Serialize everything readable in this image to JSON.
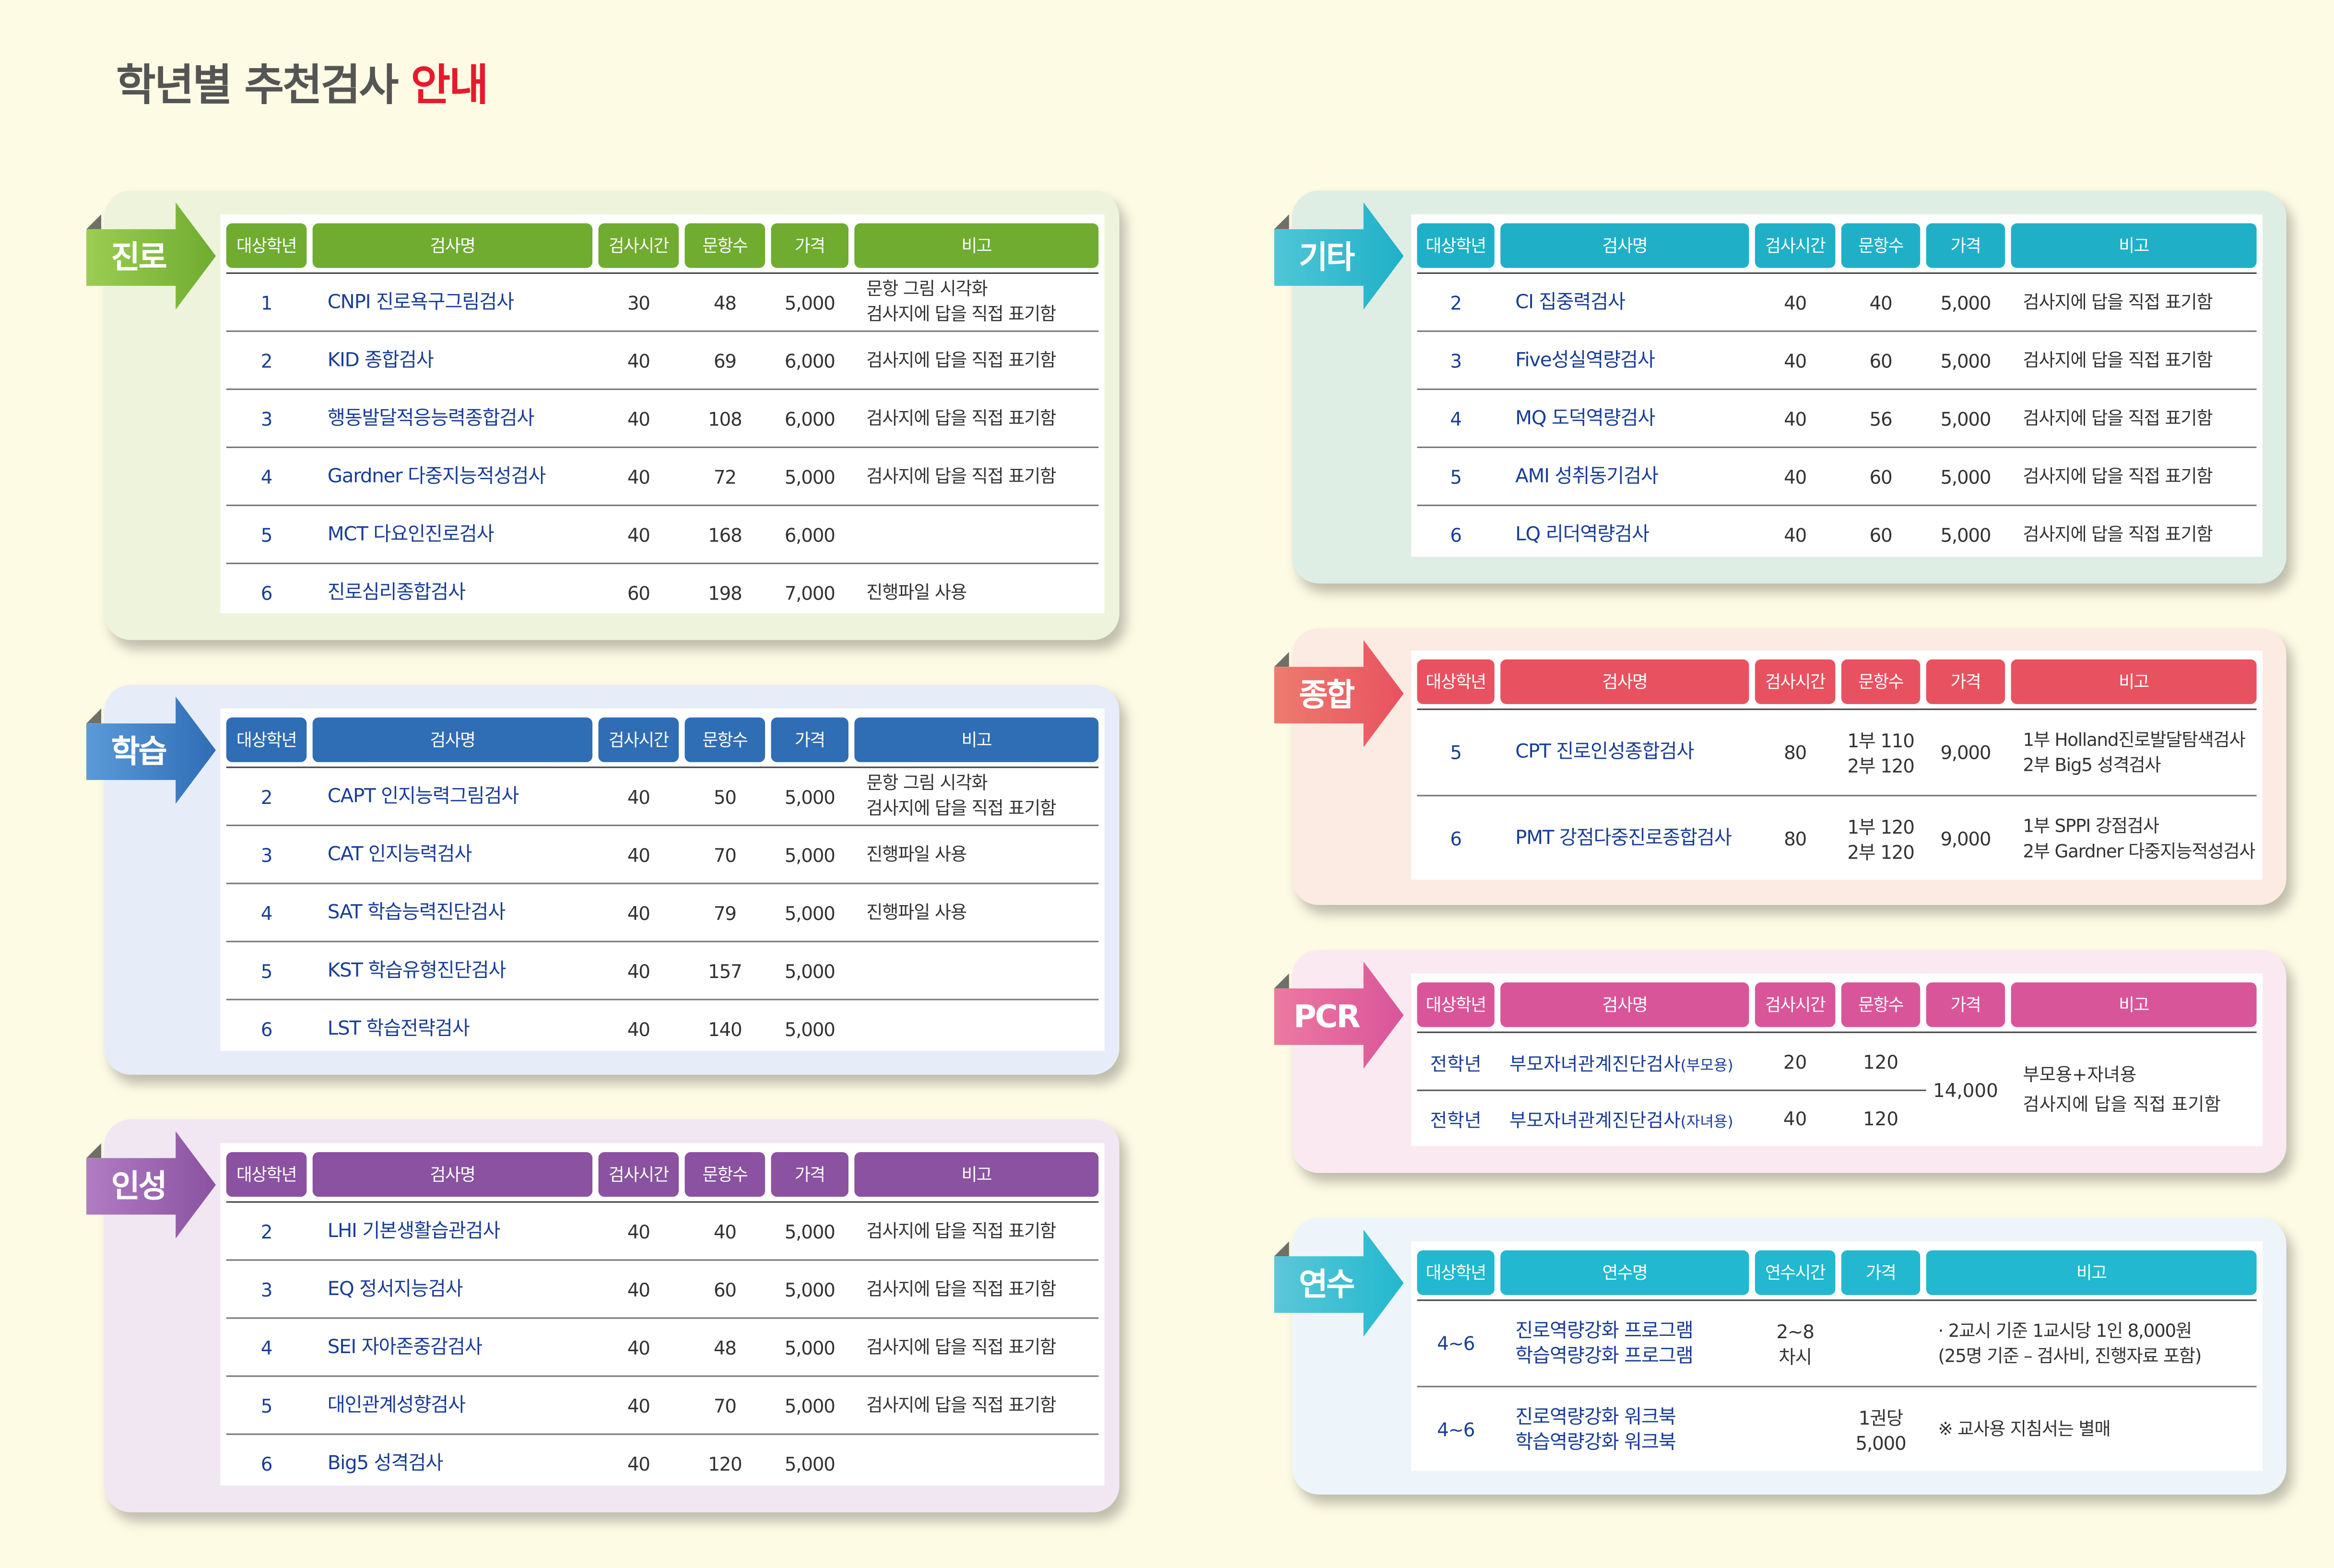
{
  "title": {
    "main": "학년별 추천검사 ",
    "accent": "안내"
  },
  "colors": {
    "accent": "#e8192c",
    "background": "#fdfbe4",
    "name_text": "#1a3d96"
  },
  "sections": [
    {
      "id": "jinro",
      "label": "진로",
      "color": "#6fac2f",
      "color_light": "#9ccd52",
      "panel_bg": "#eef3dc",
      "headers": [
        "대상학년",
        "검사명",
        "검사시간",
        "문항수",
        "가격",
        "비고"
      ],
      "rows": [
        [
          "1",
          "CNPI 진로욕구그림검사",
          "30",
          "48",
          "5,000",
          "문항 그림 시각화\n검사지에 답을 직접 표기함"
        ],
        [
          "2",
          "KID 종합검사",
          "40",
          "69",
          "6,000",
          "검사지에 답을 직접 표기함"
        ],
        [
          "3",
          "행동발달적응능력종합검사",
          "40",
          "108",
          "6,000",
          "검사지에 답을 직접 표기함"
        ],
        [
          "4",
          "Gardner 다중지능적성검사",
          "40",
          "72",
          "5,000",
          "검사지에 답을 직접 표기함"
        ],
        [
          "5",
          "MCT 다요인진로검사",
          "40",
          "168",
          "6,000",
          ""
        ],
        [
          "6",
          "진로심리종합검사",
          "60",
          "198",
          "7,000",
          "진행파일 사용"
        ]
      ]
    },
    {
      "id": "hakseup",
      "label": "학습",
      "color": "#2f6db5",
      "color_light": "#5b9ad8",
      "panel_bg": "#e6edf8",
      "headers": [
        "대상학년",
        "검사명",
        "검사시간",
        "문항수",
        "가격",
        "비고"
      ],
      "rows": [
        [
          "2",
          "CAPT 인지능력그림검사",
          "40",
          "50",
          "5,000",
          "문항 그림 시각화\n검사지에 답을 직접 표기함"
        ],
        [
          "3",
          "CAT 인지능력검사",
          "40",
          "70",
          "5,000",
          "진행파일 사용"
        ],
        [
          "4",
          "SAT 학습능력진단검사",
          "40",
          "79",
          "5,000",
          "진행파일 사용"
        ],
        [
          "5",
          "KST 학습유형진단검사",
          "40",
          "157",
          "5,000",
          ""
        ],
        [
          "6",
          "LST 학습전략검사",
          "40",
          "140",
          "5,000",
          ""
        ]
      ]
    },
    {
      "id": "inseong",
      "label": "인성",
      "color": "#8a52a0",
      "color_light": "#b07cc3",
      "panel_bg": "#f1e7f3",
      "headers": [
        "대상학년",
        "검사명",
        "검사시간",
        "문항수",
        "가격",
        "비고"
      ],
      "rows": [
        [
          "2",
          "LHI 기본생활습관검사",
          "40",
          "40",
          "5,000",
          "검사지에 답을 직접 표기함"
        ],
        [
          "3",
          "EQ 정서지능검사",
          "40",
          "60",
          "5,000",
          "검사지에 답을 직접 표기함"
        ],
        [
          "4",
          "SEI 자아존중감검사",
          "40",
          "48",
          "5,000",
          "검사지에 답을 직접 표기함"
        ],
        [
          "5",
          "대인관계성향검사",
          "40",
          "70",
          "5,000",
          "검사지에 답을 직접 표기함"
        ],
        [
          "6",
          "Big5 성격검사",
          "40",
          "120",
          "5,000",
          ""
        ]
      ]
    },
    {
      "id": "gita",
      "label": "기타",
      "color": "#1fb0c8",
      "color_light": "#4fc6d6",
      "panel_bg": "#dfeee4",
      "headers": [
        "대상학년",
        "검사명",
        "검사시간",
        "문항수",
        "가격",
        "비고"
      ],
      "rows": [
        [
          "2",
          "CI 집중력검사",
          "40",
          "40",
          "5,000",
          "검사지에 답을 직접 표기함"
        ],
        [
          "3",
          "Five성실역량검사",
          "40",
          "60",
          "5,000",
          "검사지에 답을 직접 표기함"
        ],
        [
          "4",
          "MQ 도덕역량검사",
          "40",
          "56",
          "5,000",
          "검사지에 답을 직접 표기함"
        ],
        [
          "5",
          "AMI 성취동기검사",
          "40",
          "60",
          "5,000",
          "검사지에 답을 직접 표기함"
        ],
        [
          "6",
          "LQ 리더역량검사",
          "40",
          "60",
          "5,000",
          "검사지에 답을 직접 표기함"
        ]
      ]
    },
    {
      "id": "jonghap",
      "label": "종합",
      "color": "#e85260",
      "color_light": "#ee7b6e",
      "panel_bg": "#fcebe3",
      "headers": [
        "대상학년",
        "검사명",
        "검사시간",
        "문항수",
        "가격",
        "비고"
      ],
      "rows": [
        [
          "5",
          "CPT 진로인성종합검사",
          "80",
          "1부 110\n2부 120",
          "9,000",
          "1부 Holland진로발달탐색검사\n2부 Big5 성격검사"
        ],
        [
          "6",
          "PMT 강점다중진로종합검사",
          "80",
          "1부 120\n2부 120",
          "9,000",
          "1부 SPPI 강점검사\n2부 Gardner 다중지능적성검사"
        ]
      ]
    },
    {
      "id": "pcr",
      "label": "PCR",
      "color": "#d9559a",
      "color_light": "#ec7aa0",
      "panel_bg": "#fbe9f1",
      "headers": [
        "대상학년",
        "검사명",
        "검사시간",
        "문항수",
        "가격",
        "비고"
      ],
      "rows": [
        [
          "전학년",
          "부모자녀관계진단검사",
          "20",
          "120"
        ],
        [
          "전학년",
          "부모자녀관계진단검사",
          "40",
          "120"
        ]
      ],
      "name_suffix": [
        "(부모용)",
        "(자녀용)"
      ],
      "merged": {
        "price": "14,000",
        "note": "부모용+자녀용\n검사지에 답을 직접 표기함"
      }
    },
    {
      "id": "yeonsu",
      "label": "연수",
      "color": "#22b8cf",
      "color_light": "#5cc7d8",
      "panel_bg": "#edf5fb",
      "headers": [
        "대상학년",
        "연수명",
        "연수시간",
        "가격",
        "비고"
      ],
      "rows": [
        [
          "4~6",
          "진로역량강화 프로그램\n학습역량강화 프로그램",
          "2~8\n차시",
          "",
          "· 2교시 기준 1교시당 1인 8,000원\n(25명 기준 – 검사비, 진행자료 포함)"
        ],
        [
          "4~6",
          "진로역량강화 워크북\n학습역량강화 워크북",
          "",
          "1권당\n5,000",
          "※ 교사용 지침서는 별매"
        ]
      ]
    }
  ]
}
